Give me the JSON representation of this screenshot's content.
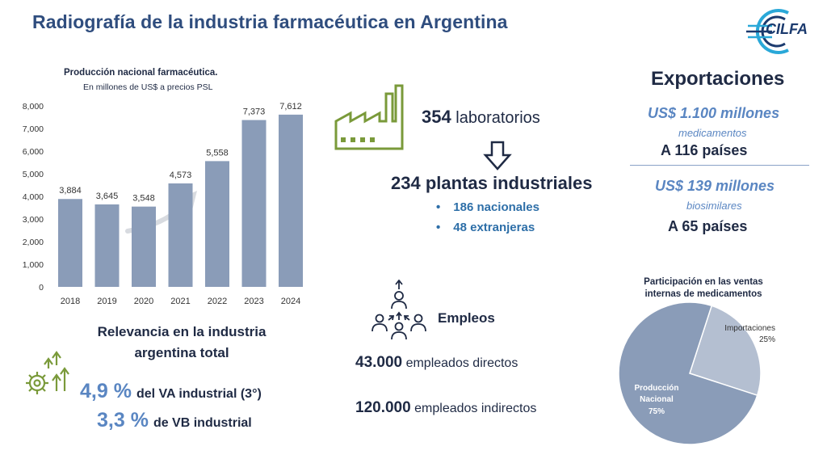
{
  "title": "Radiografía de la industria farmacéutica en Argentina",
  "logo": {
    "text": "CILFA",
    "color": "#1b3a6e",
    "accent": "#2aa8d8"
  },
  "chart_data": [
    {
      "type": "bar",
      "title": "Producción nacional farmacéutica.",
      "subtitle": "En millones de US$ a precios PSL",
      "categories": [
        "2018",
        "2019",
        "2020",
        "2021",
        "2022",
        "2023",
        "2024"
      ],
      "values": [
        3884,
        3645,
        3548,
        4573,
        5558,
        7373,
        7612
      ],
      "value_labels": [
        "3,884",
        "3,645",
        "3,548",
        "4,573",
        "5,558",
        "7,373",
        "7,612"
      ],
      "y_ticks": [
        "0",
        "1,000",
        "2,000",
        "3,000",
        "4,000",
        "5,000",
        "6,000",
        "7,000",
        "8,000"
      ],
      "ylim": [
        0,
        8000
      ],
      "grid": false,
      "bar_color": "#8a9cb8",
      "xlabel": "",
      "ylabel": ""
    },
    {
      "type": "pie",
      "title": "Participación en las ventas internas de medicamentos",
      "slices": [
        {
          "label": "Producción Nacional",
          "value": 75,
          "value_label": "75%",
          "color": "#8a9cb8"
        },
        {
          "label": "Importaciones",
          "value": 25,
          "value_label": "25%",
          "color": "#b4bfd1"
        }
      ]
    }
  ],
  "relevance": {
    "title": "Relevancia en la industria argentina total",
    "va_pct": "4,9 %",
    "va_text": "del VA industrial (3°)",
    "vb_pct": "3,3 %",
    "vb_text": "de VB industrial"
  },
  "labs": {
    "count": "354",
    "label": "laboratorios"
  },
  "plants": {
    "count": "234",
    "label": "plantas industriales",
    "items": [
      "186 nacionales",
      "48 extranjeras"
    ]
  },
  "employment": {
    "title": "Empleos",
    "direct_count": "43.000",
    "direct_label": "empleados directos",
    "indirect_count": "120.000",
    "indirect_label": "empleados indirectos"
  },
  "exports": {
    "title": "Exportaciones",
    "items": [
      {
        "amount": "US$ 1.100 millones",
        "category": "medicamentos",
        "countries": "A 116 países"
      },
      {
        "amount": "US$ 139 millones",
        "category": "biosimilares",
        "countries": "A 65 países"
      }
    ]
  },
  "icons": [
    "trend-arrow-icon",
    "gear-growth-icon",
    "factory-icon",
    "down-arrow-icon",
    "people-network-icon",
    "cilfa-logo"
  ],
  "colors": {
    "title": "#2f4d7e",
    "accent_blue": "#5a86c2",
    "bullet_blue": "#2e6fa8",
    "factory_green": "#7a9a3a"
  }
}
